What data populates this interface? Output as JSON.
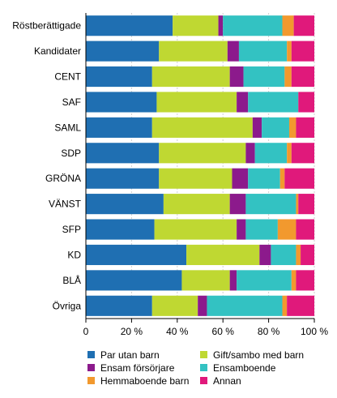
{
  "chart_data": {
    "type": "bar",
    "orientation": "horizontal",
    "stacked": true,
    "categories": [
      "Röstberättigade",
      "Kandidater",
      "CENT",
      "SAF",
      "SAML",
      "SDP",
      "GRÖNA",
      "VÄNST",
      "SFP",
      "KD",
      "BLÅ",
      "Övriga"
    ],
    "series": [
      {
        "name": "Par utan barn",
        "color": "#1f6fb2",
        "values": [
          38,
          32,
          29,
          31,
          29,
          32,
          32,
          34,
          30,
          44,
          42,
          29
        ]
      },
      {
        "name": "Gift/sambo med barn",
        "color": "#bfd832",
        "values": [
          20,
          30,
          34,
          35,
          44,
          38,
          32,
          29,
          36,
          32,
          21,
          20
        ]
      },
      {
        "name": "Ensam försörjare",
        "color": "#8c1a8c",
        "values": [
          2,
          5,
          6,
          5,
          4,
          4,
          7,
          7,
          4,
          5,
          3,
          4
        ]
      },
      {
        "name": "Ensamboende",
        "color": "#33c2c2",
        "values": [
          26,
          21,
          18,
          22,
          12,
          14,
          14,
          22,
          14,
          11,
          24,
          33
        ]
      },
      {
        "name": "Hemmaboende barn",
        "color": "#f2992e",
        "values": [
          5,
          2,
          3,
          0,
          3,
          2,
          2,
          1,
          8,
          2,
          2,
          2
        ]
      },
      {
        "name": "Annan",
        "color": "#e0197b",
        "values": [
          9,
          10,
          10,
          7,
          8,
          10,
          13,
          7,
          8,
          6,
          8,
          12
        ]
      }
    ],
    "xlim": [
      0,
      100
    ],
    "xticks": [
      "0",
      "20 %",
      "40 %",
      "60 %",
      "80 %",
      "100 %"
    ],
    "grid": true,
    "legend_position": "bottom"
  }
}
